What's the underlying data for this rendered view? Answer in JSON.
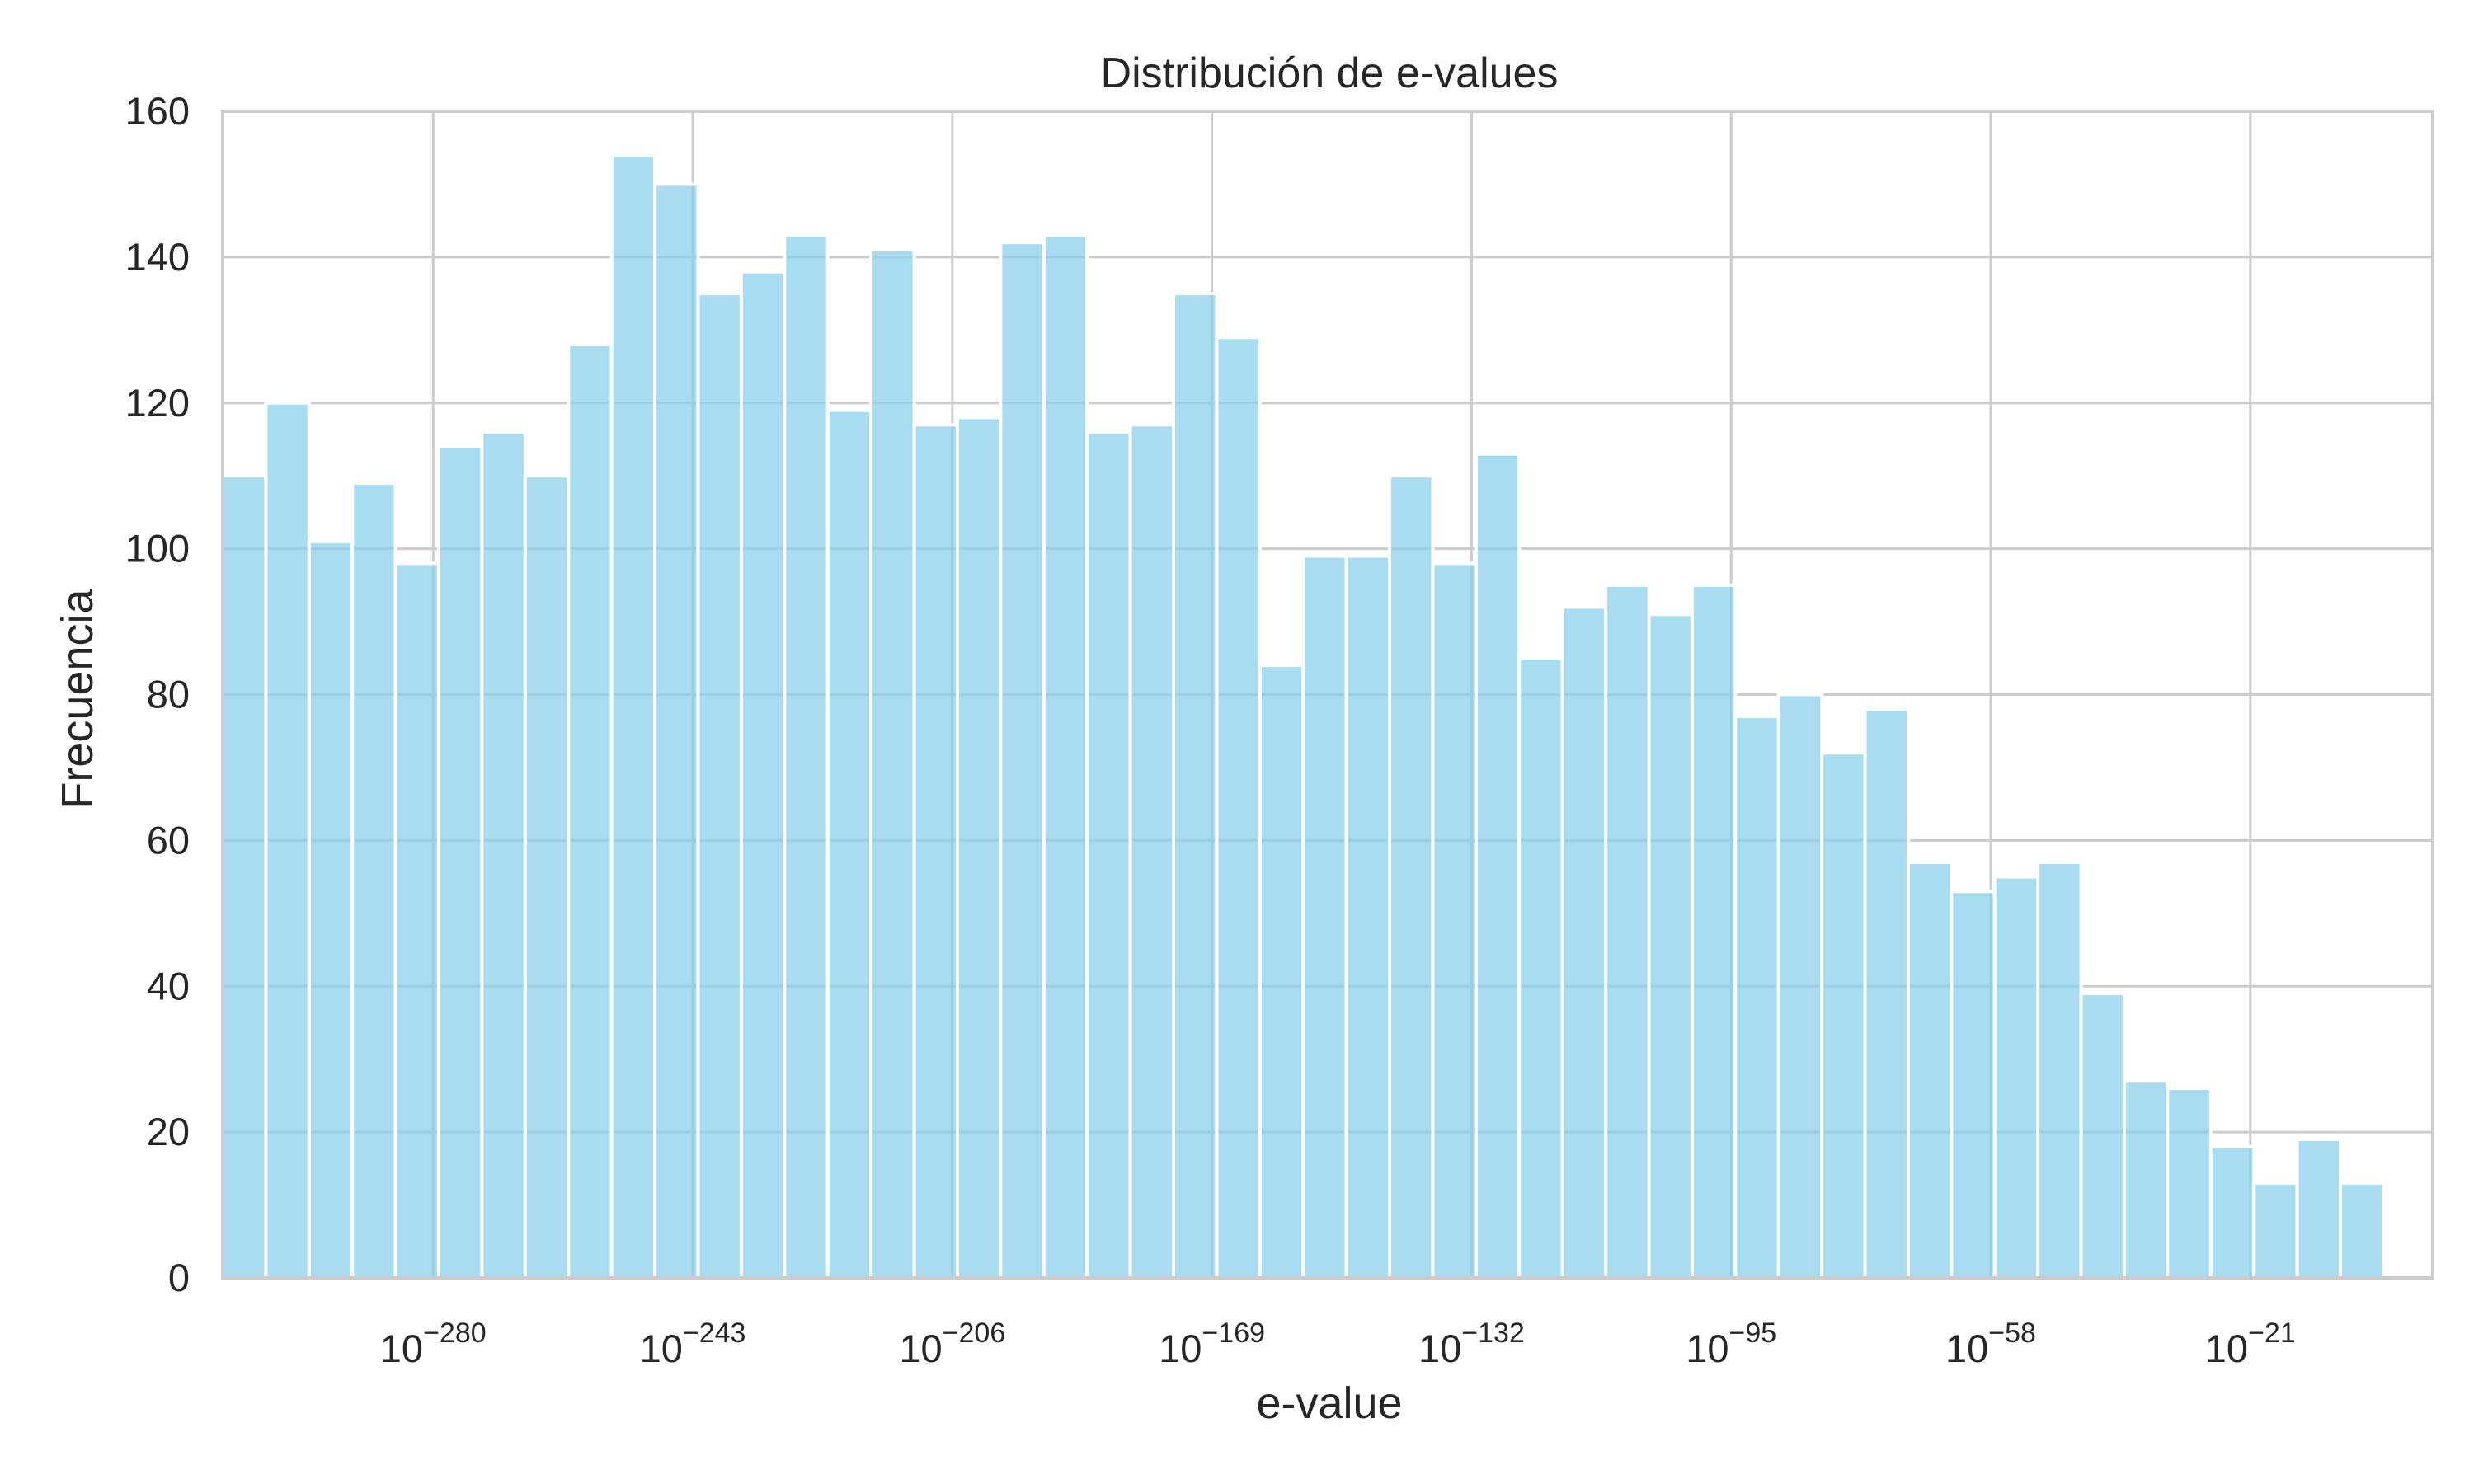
{
  "chart_data": {
    "type": "bar",
    "title": "Distribución de e-values",
    "xlabel": "e-value",
    "ylabel": "Frecuencia",
    "x_scale": "log",
    "x_exponent_range": [
      -310,
      5
    ],
    "xticks": [
      {
        "exponent": -280,
        "base": "10",
        "exp": "−280"
      },
      {
        "exponent": -243,
        "base": "10",
        "exp": "−243"
      },
      {
        "exponent": -206,
        "base": "10",
        "exp": "−206"
      },
      {
        "exponent": -169,
        "base": "10",
        "exp": "−169"
      },
      {
        "exponent": -132,
        "base": "10",
        "exp": "−132"
      },
      {
        "exponent": -95,
        "base": "10",
        "exp": "−95"
      },
      {
        "exponent": -58,
        "base": "10",
        "exp": "−58"
      },
      {
        "exponent": -21,
        "base": "10",
        "exp": "−21"
      }
    ],
    "ylim": [
      0,
      160
    ],
    "yticks": [
      0,
      20,
      40,
      60,
      80,
      100,
      120,
      140,
      160
    ],
    "grid": true,
    "bin_exponent_range": [
      -310,
      -2
    ],
    "values": [
      110,
      120,
      101,
      109,
      98,
      114,
      116,
      110,
      128,
      154,
      150,
      135,
      138,
      143,
      119,
      141,
      117,
      118,
      142,
      143,
      116,
      117,
      135,
      129,
      84,
      99,
      99,
      110,
      98,
      113,
      85,
      92,
      95,
      91,
      95,
      77,
      80,
      72,
      78,
      57,
      53,
      55,
      57,
      39,
      27,
      26,
      18,
      13,
      19,
      13
    ],
    "colors": {
      "bar": "#87ceeb",
      "grid": "#cccccc",
      "text": "#262626"
    }
  }
}
